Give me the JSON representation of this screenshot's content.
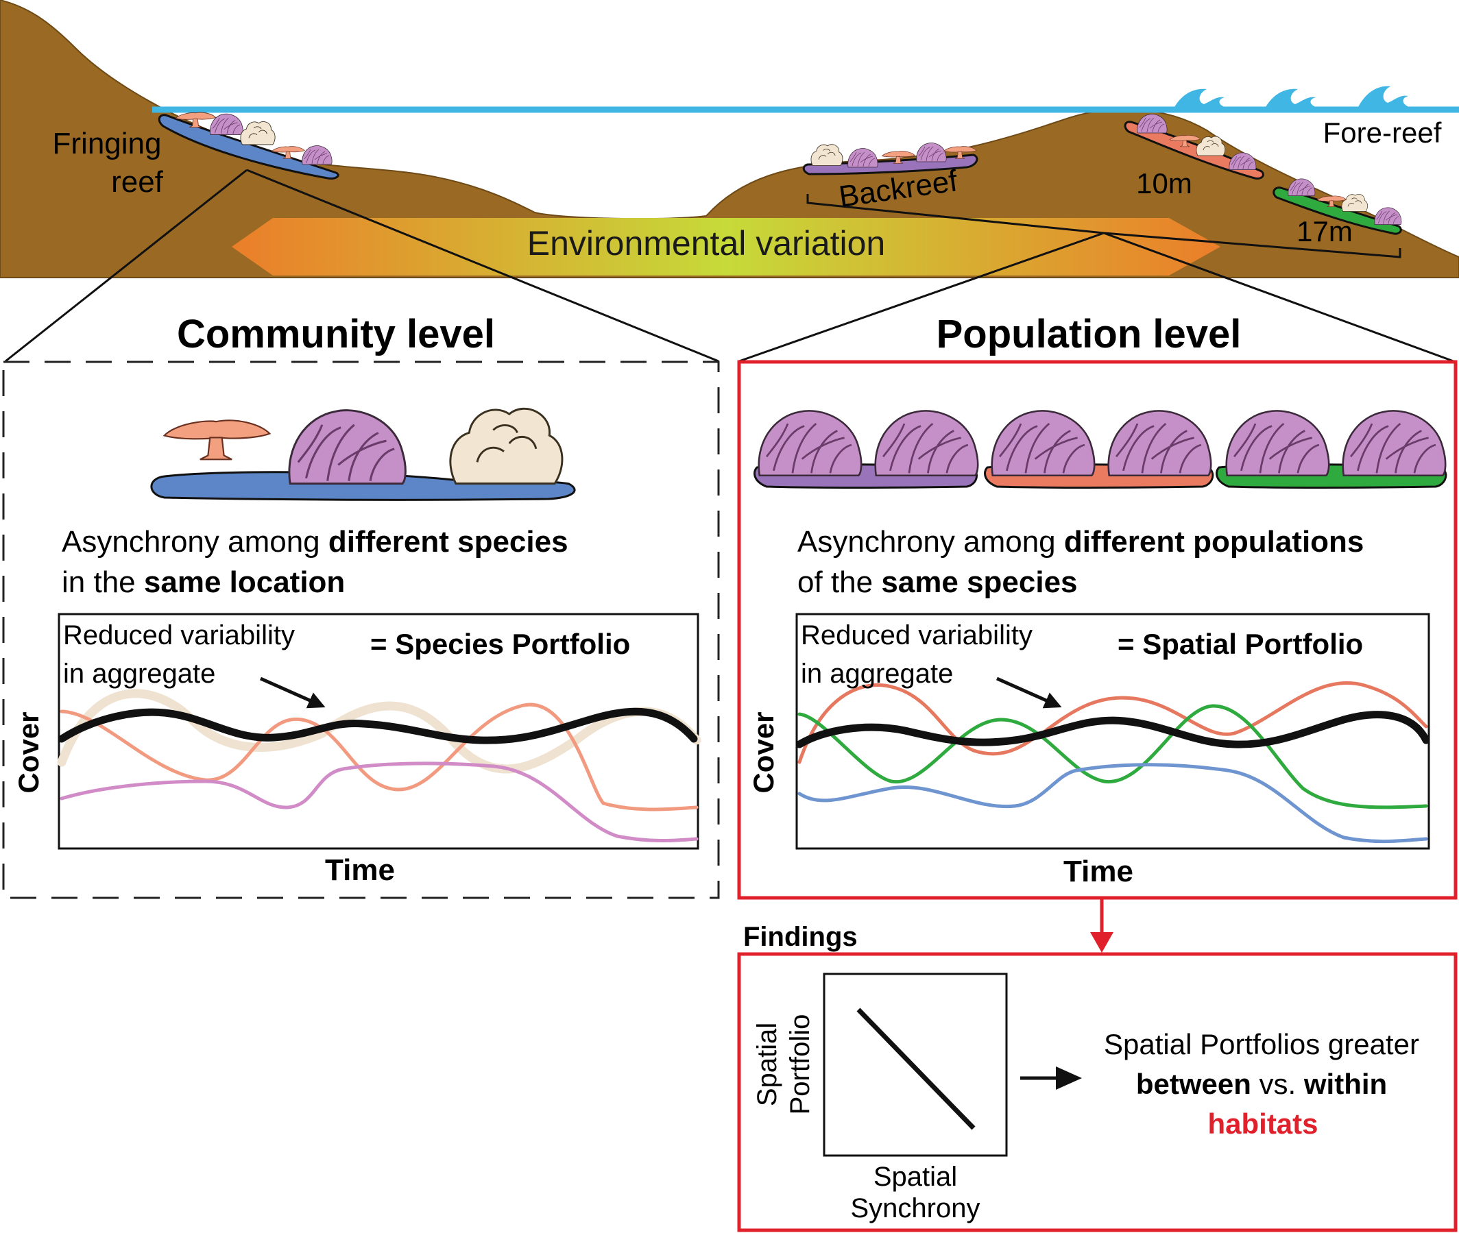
{
  "landscape": {
    "fringing_reef_line1": "Fringing",
    "fringing_reef_line2": "reef",
    "backreef": "Backreef",
    "depth_10m": "10m",
    "depth_17m": "17m",
    "fore_reef": "Fore-reef",
    "gradient_arrow": "Environmental variation"
  },
  "community": {
    "title": "Community level",
    "desc_line1": {
      "t1": "Asynchrony among ",
      "t2": "different species"
    },
    "desc_line2": {
      "t1": "in the ",
      "t2": "same location"
    },
    "note_line1": "Reduced variability",
    "note_line2": "in aggregate",
    "portfolio": "= Species Portfolio",
    "y_axis": "Cover",
    "x_axis": "Time"
  },
  "population": {
    "title": "Population level",
    "desc_line1": {
      "t1": "Asynchrony among ",
      "t2": "different populations"
    },
    "desc_line2": {
      "t1": "of the ",
      "t2": "same species"
    },
    "note_line1": "Reduced variability",
    "note_line2": "in aggregate",
    "portfolio": "= Spatial Portfolio",
    "y_axis": "Cover",
    "x_axis": "Time"
  },
  "findings": {
    "label": "Findings",
    "y_axis_line1": "Spatial",
    "y_axis_line2": "Portfolio",
    "x_axis_line1": "Spatial",
    "x_axis_line2": "Synchrony",
    "conclusion_line1": "Spatial Portfolios greater",
    "conclusion_b1": "between",
    "conclusion_mid": " vs. ",
    "conclusion_b2": "within",
    "conclusion_highlight": "habitats"
  },
  "colors": {
    "sea": "#3fb6e4",
    "land": "#9a6a24",
    "frame_red": "#e0202a",
    "habitat_blue": "#5c86c8",
    "habitat_purple": "#9a74bb",
    "habitat_orange": "#ea7a60",
    "habitat_green": "#2faa3e",
    "coral_pink": "#c58fc8",
    "coral_salmon": "#f2a080",
    "coral_cream": "#f2e6d2"
  }
}
